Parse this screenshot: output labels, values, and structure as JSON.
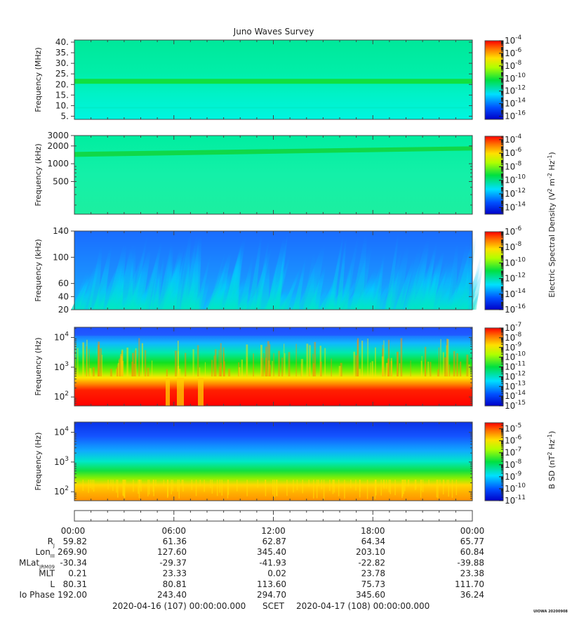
{
  "chart_data": {
    "type": "heatmap",
    "title": "Juno Waves Survey",
    "panels": [
      {
        "ylabel": "Frequency (MHz)",
        "yscale": "linear",
        "ylim": [
          3.5,
          41
        ],
        "yticks": [
          "40.",
          "35.",
          "30.",
          "25.",
          "20.",
          "15.",
          "10.",
          "5."
        ],
        "ytick_values": [
          40,
          35,
          30,
          25,
          20,
          15,
          10,
          5
        ],
        "features": [
          {
            "band": 21.5,
            "description": "bright emission line"
          }
        ],
        "colorbar": {
          "labels": [
            "-4",
            "-6",
            "-8",
            "-10",
            "-12",
            "-14",
            "-16"
          ],
          "exponents": [
            -4,
            -6,
            -8,
            -10,
            -12,
            -14,
            -16
          ],
          "range": [
            -16.5,
            -4
          ]
        }
      },
      {
        "ylabel": "Frequency (kHz)",
        "yscale": "log",
        "ylim": [
          140,
          3000
        ],
        "yticks": [
          "3000",
          "2000",
          "1000",
          "500"
        ],
        "ytick_values": [
          3000,
          2000,
          1000,
          500
        ],
        "features": [
          {
            "band": 1500,
            "description": "emission band"
          }
        ],
        "colorbar": {
          "labels": [
            "-4",
            "-6",
            "-8",
            "-10",
            "-12",
            "-14"
          ],
          "exponents": [
            -4,
            -6,
            -8,
            -10,
            -12,
            -14
          ],
          "range": [
            -15,
            -3.5
          ]
        }
      },
      {
        "ylabel": "Frequency (kHz)",
        "yscale": "linear",
        "ylim": [
          20,
          140
        ],
        "yticks": [
          "140",
          "100",
          "60",
          "40",
          "20"
        ],
        "ytick_values": [
          140,
          100,
          60,
          40,
          20
        ],
        "colorbar": {
          "labels": [
            "-6",
            "-8",
            "-10",
            "-12",
            "-14",
            "-16"
          ],
          "exponents": [
            -6,
            -8,
            -10,
            -12,
            -14,
            -16
          ],
          "range": [
            -16,
            -6
          ]
        }
      },
      {
        "ylabel": "Frequency (Hz)",
        "yscale": "log",
        "ylim": [
          50,
          22000
        ],
        "yticks": [
          "4",
          "3",
          "2"
        ],
        "ytick_values": [
          10000,
          1000,
          100
        ],
        "colorbar": {
          "labels": [
            "-7",
            "-8",
            "-9",
            "-10",
            "-11",
            "-12",
            "-13",
            "-14",
            "-15"
          ],
          "exponents": [
            -7,
            -8,
            -9,
            -10,
            -11,
            -12,
            -13,
            -14,
            -15
          ],
          "range": [
            -15,
            -7
          ]
        }
      },
      {
        "ylabel": "Frequency (Hz)",
        "yscale": "log",
        "ylim": [
          50,
          22000
        ],
        "yticks": [
          "4",
          "3",
          "2"
        ],
        "ytick_values": [
          10000,
          1000,
          100
        ],
        "colorbar": {
          "labels": [
            "-5",
            "-6",
            "-7",
            "-8",
            "-9",
            "-10",
            "-11"
          ],
          "exponents": [
            -5,
            -6,
            -7,
            -8,
            -9,
            -10,
            -11
          ],
          "range": [
            -11,
            -4.5
          ]
        }
      }
    ],
    "colorbar_titles": [
      {
        "text": "Electric Spectral Density (V",
        "sup1": "2",
        "mid": " m",
        "sup2": "-2",
        "mid2": " Hz",
        "sup3": "-1",
        "end": ")"
      },
      {
        "text": "B SD (nT",
        "sup1": "2",
        "mid": " Hz",
        "sup2": "-1",
        "end": ")"
      }
    ],
    "power_base": "10",
    "x": {
      "tick_labels": [
        "00:00",
        "06:00",
        "12:00",
        "18:00",
        "00:00"
      ],
      "tick_hours": [
        0,
        6,
        12,
        18,
        24
      ],
      "xlim": [
        0,
        24
      ]
    },
    "ephemeris": {
      "rows": [
        {
          "label": "R",
          "sub": "J",
          "values": [
            "59.82",
            "61.36",
            "62.87",
            "64.34",
            "65.77"
          ]
        },
        {
          "label": "Lon",
          "sub": "III",
          "values": [
            "269.90",
            "127.60",
            "345.40",
            "203.10",
            "60.84"
          ]
        },
        {
          "label": "MLat",
          "sub": "JRM09",
          "values": [
            "-30.34",
            "-29.37",
            "-41.93",
            "-22.82",
            "-39.88"
          ]
        },
        {
          "label": "MLT",
          "sub": "",
          "values": [
            "0.21",
            "23.33",
            "0.02",
            "23.78",
            "23.38"
          ]
        },
        {
          "label": "L",
          "sub": "",
          "values": [
            "80.31",
            "80.81",
            "113.60",
            "75.73",
            "111.70"
          ]
        },
        {
          "label": "Io Phase",
          "sub": "",
          "values": [
            "192.00",
            "243.40",
            "294.70",
            "345.60",
            "36.24"
          ]
        }
      ]
    },
    "footer": {
      "start": "2020-04-16 (107) 00:00:00.000",
      "scet": "SCET",
      "end": "2020-04-17 (108) 00:00:00.000",
      "stamp": "UIOWA 20200908"
    }
  }
}
